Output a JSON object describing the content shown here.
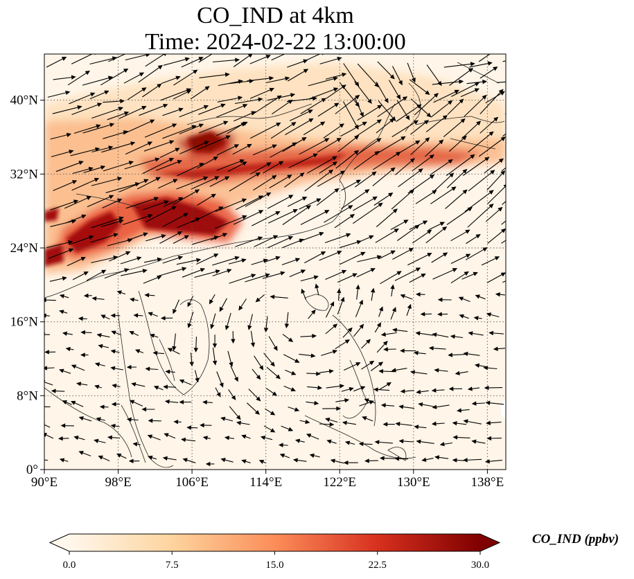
{
  "figure": {
    "title_line1": "CO_IND at 4km",
    "title_line2": "Time: 2024-02-22 13:00:00"
  },
  "map": {
    "projection": "PlateCarree",
    "lon_range": [
      90,
      140
    ],
    "lat_range": [
      0,
      45
    ],
    "lon_ticks": [
      {
        "value": 90,
        "label": "90°E"
      },
      {
        "value": 98,
        "label": "98°E"
      },
      {
        "value": 106,
        "label": "106°E"
      },
      {
        "value": 114,
        "label": "114°E"
      },
      {
        "value": 122,
        "label": "122°E"
      },
      {
        "value": 130,
        "label": "130°E"
      },
      {
        "value": 138,
        "label": "138°E"
      }
    ],
    "lat_ticks": [
      {
        "value": 0,
        "label": "0°"
      },
      {
        "value": 8,
        "label": "8°N"
      },
      {
        "value": 16,
        "label": "16°N"
      },
      {
        "value": 24,
        "label": "24°N"
      },
      {
        "value": 32,
        "label": "32°N"
      },
      {
        "value": 40,
        "label": "40°N"
      }
    ],
    "gridlines": "dotted",
    "coastlines": true,
    "wind_vectors": true
  },
  "colorbar": {
    "label": "CO_IND (ppbv)",
    "cmap": "OrRd",
    "colors": [
      "#fff7ec",
      "#fdd49e",
      "#fc8d59",
      "#d7301f",
      "#7f0000"
    ],
    "min": 0.0,
    "max": 30.0,
    "extend": "both",
    "ticks": [
      {
        "value": 0,
        "label": "0.0"
      },
      {
        "value": 7.5,
        "label": "7.5"
      },
      {
        "value": 15,
        "label": "15.0"
      },
      {
        "value": 22.5,
        "label": "22.5"
      },
      {
        "value": 30,
        "label": "30.0"
      }
    ]
  }
}
